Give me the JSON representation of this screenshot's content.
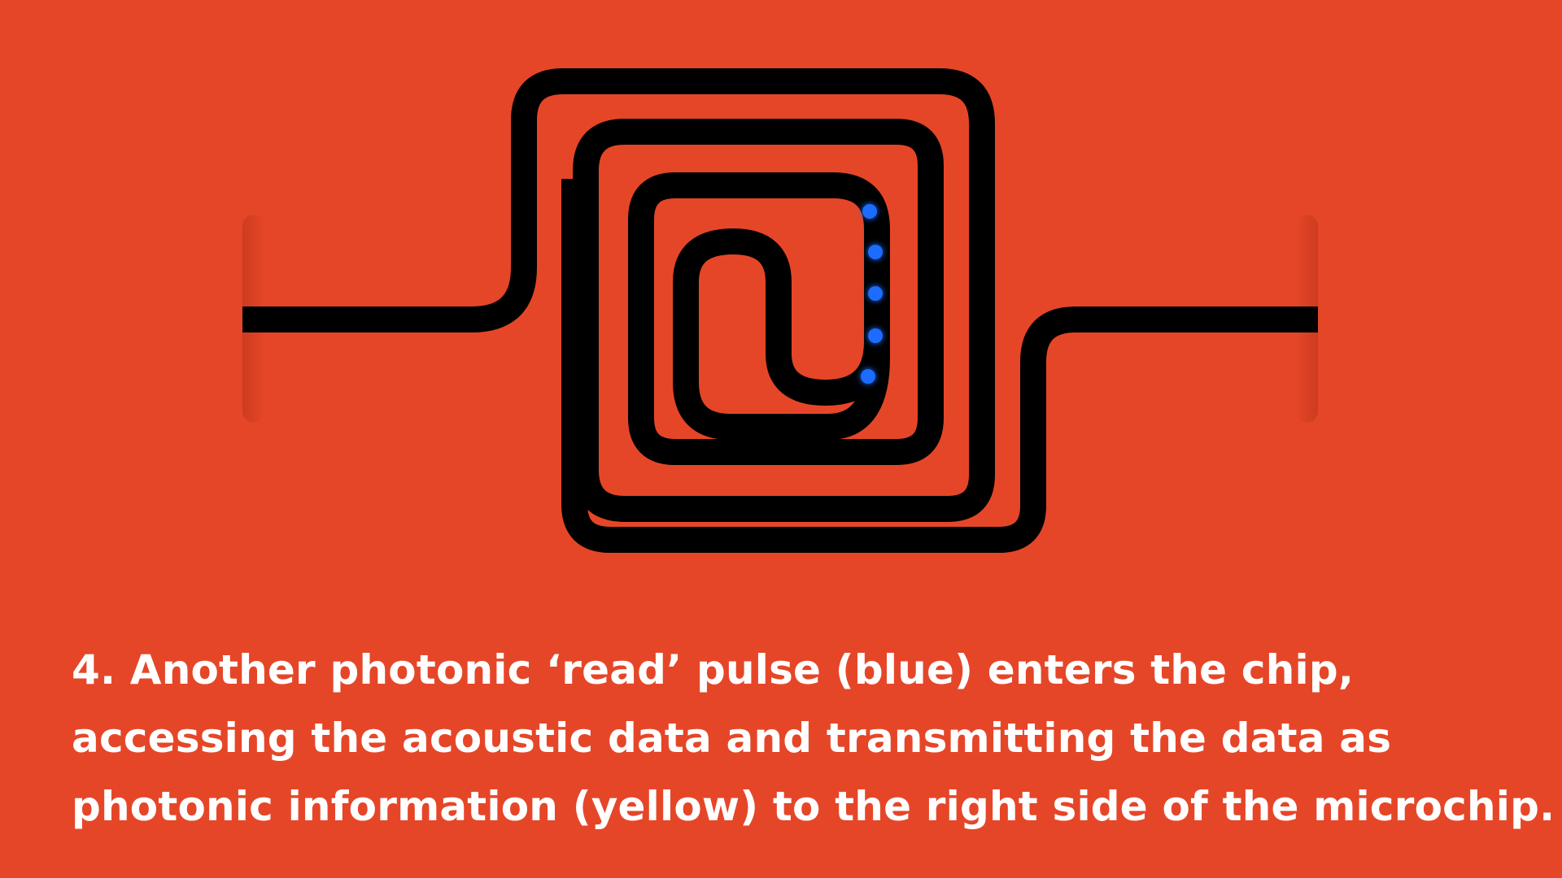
{
  "colors": {
    "background": "#e64628",
    "waveguide": "#000000",
    "read_pulse": "#1a6cff",
    "edge_glow": "#b83418",
    "text": "#ffffff"
  },
  "diagram": {
    "pulse_color_name": "blue",
    "icons": {
      "waveguide": "spiral-waveguide-icon",
      "pulse": "read-pulse-dot-icon"
    }
  },
  "caption": {
    "lines": [
      "4.  Another photonic ‘read’ pulse (blue) enters the chip,",
      "accessing the acoustic data and transmitting the data as",
      "photonic information (yellow) to the right side of the microchip."
    ]
  }
}
